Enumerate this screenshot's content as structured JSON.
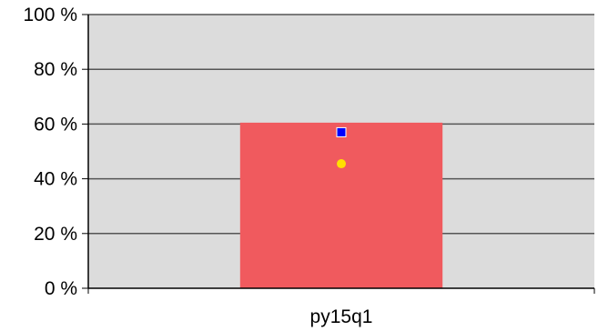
{
  "chart_data": {
    "type": "bar",
    "categories": [
      "py15q1"
    ],
    "series": [
      {
        "values": [
          60.5
        ],
        "color": "#f05a5e"
      }
    ],
    "markers": [
      {
        "value": 57,
        "shape": "square",
        "color": "#0000ff"
      },
      {
        "value": 45.5,
        "shape": "circle",
        "color": "#ffe000"
      }
    ],
    "ylim": [
      0,
      100
    ],
    "yticks": [
      0,
      20,
      40,
      60,
      80,
      100
    ],
    "ytick_suffix": " %",
    "grid": true,
    "plot_background": "#dcdcdc",
    "grid_color": "#555555"
  }
}
